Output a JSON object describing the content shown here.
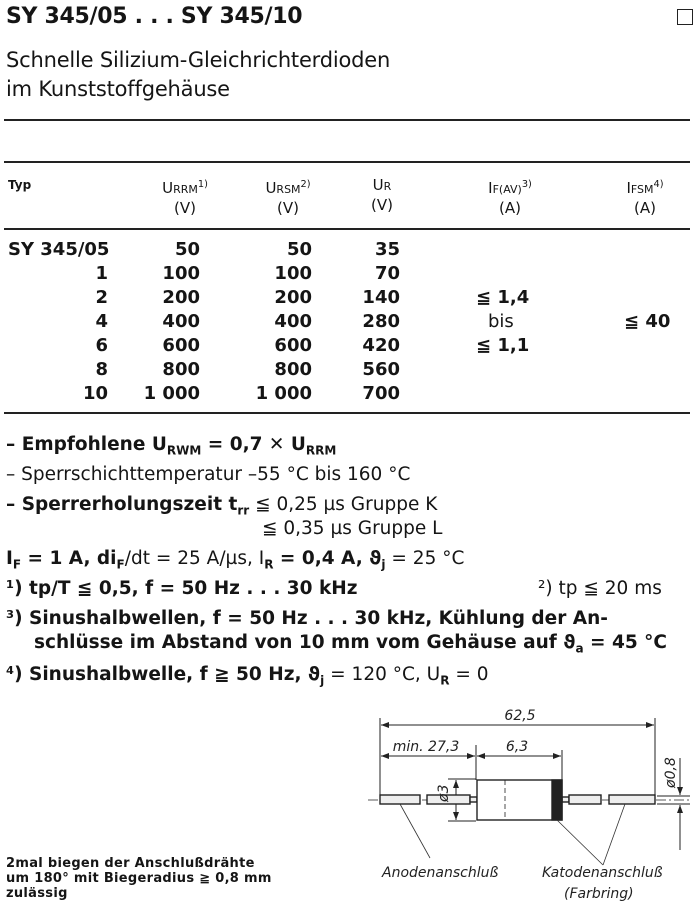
{
  "header": {
    "title": "SY 345/05 . . . SY 345/10",
    "subtitle_line1": "Schnelle Silizium-Gleichrichterdioden",
    "subtitle_line2": "im Kunststoffgehäuse"
  },
  "table": {
    "columns": [
      {
        "name": "Typ",
        "unit": ""
      },
      {
        "name": "U",
        "sub": "RRM",
        "note": "1)",
        "unit": "(V)"
      },
      {
        "name": "U",
        "sub": "RSM",
        "note": "2)",
        "unit": "(V)"
      },
      {
        "name": "U",
        "sub": "R",
        "note": "",
        "unit": "(V)"
      },
      {
        "name": "I",
        "sub": "F(AV)",
        "note": "3)",
        "unit": "(A)"
      },
      {
        "name": "I",
        "sub": "FSM",
        "note": "4)",
        "unit": "(A)"
      }
    ],
    "rows": [
      {
        "typ": "SY 345/05",
        "urrm": "50",
        "ursm": "50",
        "ur": "35"
      },
      {
        "typ": "1",
        "urrm": "100",
        "ursm": "100",
        "ur": "70"
      },
      {
        "typ": "2",
        "urrm": "200",
        "ursm": "200",
        "ur": "140"
      },
      {
        "typ": "4",
        "urrm": "400",
        "ursm": "400",
        "ur": "280"
      },
      {
        "typ": "6",
        "urrm": "600",
        "ursm": "600",
        "ur": "420"
      },
      {
        "typ": "8",
        "urrm": "800",
        "ursm": "800",
        "ur": "560"
      },
      {
        "typ": "10",
        "urrm": "1 000",
        "ursm": "1 000",
        "ur": "700"
      }
    ],
    "ifav": [
      "≦ 1,4",
      "bis",
      "≦ 1,1"
    ],
    "ifsm": "≦ 40"
  },
  "notes": {
    "n1": "– Empfohlene U",
    "n1_sub": "RWM",
    "n1_rest": " = 0,7 ✕ U",
    "n1_sub2": "RRM",
    "n2": "– Sperrschichttemperatur –55 °C bis 160 °C",
    "n3": "– Sperrerholungszeit t",
    "n3_sub": "rr",
    "n3_rest": " ≦ 0,25 µs Gruppe K",
    "n4": "≦ 0,35 µs Gruppe L",
    "n5": "I",
    "n5_sub": "F",
    "n5_rest": " = 1 A, di",
    "n5_sub2": "F",
    "n5_rest2": "/dt = 25 A/µs, I",
    "n5_sub3": "R",
    "n5_rest3": " = 0,4 A, ϑ",
    "n5_sub4": "j",
    "n5_rest4": " = 25 °C",
    "f1": "¹) tp/T ≦ 0,5, f = 50 Hz . . . 30 kHz",
    "f2": "²) tp ≦ 20 ms",
    "f3a": "³) Sinushalbwellen,   f = 50 Hz . . . 30 kHz,  Kühlung  der  An-",
    "f3b": "schlüsse im Abstand von 10 mm vom Gehäuse auf ϑ",
    "f3b_sub": "a",
    "f3b_rest": " = 45 °C",
    "f4": "⁴) Sinushalbwelle, f ≧ 50 Hz, ϑ",
    "f4_sub": "j",
    "f4_rest": " = 120 °C, U",
    "f4_sub2": "R",
    "f4_rest2": " = 0"
  },
  "drawing": {
    "total_length": "62,5",
    "lead_length": "min. 27,3",
    "body_length": "6,3",
    "body_diameter": "ø3",
    "lead_diameter": "ø0,8",
    "anode_label": "Anodenanschluß",
    "cathode_label": "Katodenanschluß",
    "cathode_note": "(Farbring)"
  },
  "footnote": {
    "line1": "2mal biegen der Anschlußdrähte",
    "line2": "um 180° mit Biegeradius ≧ 0,8 mm",
    "line3": "zulässig"
  }
}
